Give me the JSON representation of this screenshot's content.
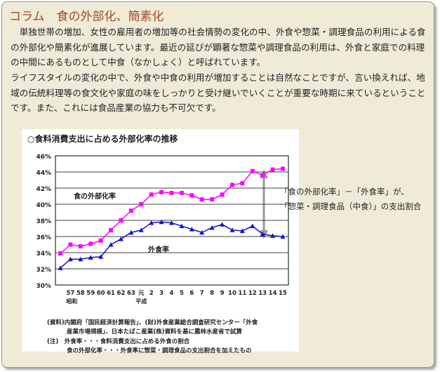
{
  "title": "コラム　食の外部化、簡素化",
  "paragraphs": [
    "　単独世帯の増加、女性の雇用者の増加等の社会情勢の変化の中、外食や惣菜・調理食品の利用による食の外部化や簡素化が進展しています。最近の延びが顕著な惣菜や調理食品の利用は、外食と家庭での料理の中間にあるものとして中食（なかしょく）と呼ばれています。",
    "ライフスタイルの変化の中で、外食や中食の利用が増加することは自然なことですが、言い換えれば、地域の伝統料理等の食文化や家庭の味をしっかりと受け継いでいくことが重要な時期に来ているということです。また、これには食品産業の協力も不可欠です。"
  ],
  "chart_data": {
    "type": "line",
    "title": "○食料消費支出に占める外部化率の推移",
    "categories": [
      null,
      "57",
      "58",
      "59",
      "60",
      "61",
      "62",
      "63",
      "元",
      "2",
      "3",
      "4",
      "5",
      "6",
      "7",
      "8",
      "9",
      "10",
      "11",
      "12",
      "13",
      "14",
      "15"
    ],
    "eras": [
      "昭和",
      "平成"
    ],
    "series": [
      {
        "name": "食の外部化率",
        "color": "#ff00ff",
        "marker": "square",
        "values": [
          33.9,
          35.0,
          34.8,
          35.1,
          35.5,
          36.8,
          38.0,
          39.2,
          40.0,
          41.2,
          41.5,
          41.4,
          41.4,
          41.1,
          40.6,
          40.6,
          41.2,
          42.4,
          42.6,
          44.1,
          43.6,
          44.3,
          44.4
        ]
      },
      {
        "name": "外食率",
        "color": "#1414c8",
        "marker": "triangle",
        "values": [
          32.1,
          33.2,
          33.2,
          33.4,
          33.5,
          35.0,
          35.7,
          36.5,
          36.8,
          37.7,
          37.8,
          37.7,
          37.3,
          36.9,
          36.5,
          37.1,
          37.5,
          36.8,
          36.7,
          37.3,
          36.3,
          36.1,
          36.0
        ]
      }
    ],
    "ylim": [
      30,
      46
    ],
    "yticks": [
      {
        "value": 30,
        "label": "30%"
      },
      {
        "value": 32,
        "label": "32%"
      },
      {
        "value": 34,
        "label": "34%"
      },
      {
        "value": 36,
        "label": "36%"
      },
      {
        "value": 38,
        "label": "38%"
      },
      {
        "value": 40,
        "label": "40%"
      },
      {
        "value": 42,
        "label": "42%"
      },
      {
        "value": 44,
        "label": "44%"
      },
      {
        "value": 46,
        "label": "46%"
      }
    ],
    "grid": true
  },
  "notes": [
    "(資料)内閣府「国民経済計算報告」、(財)外食産業総合調査研究センター「外食",
    "産業市場規模」、日本たばこ産業(株)資料を基に農林水産省で試算",
    "(注)　外食率・・・食料消費支出に占める外食の割合",
    "食の外部化率・・・外食率に惣菜・調理食品の支出割合を加えたもの"
  ],
  "callout": [
    "「食の外部化率」－「外食率」が、",
    "「惣菜・調理食品（中食）」の支出割合"
  ]
}
